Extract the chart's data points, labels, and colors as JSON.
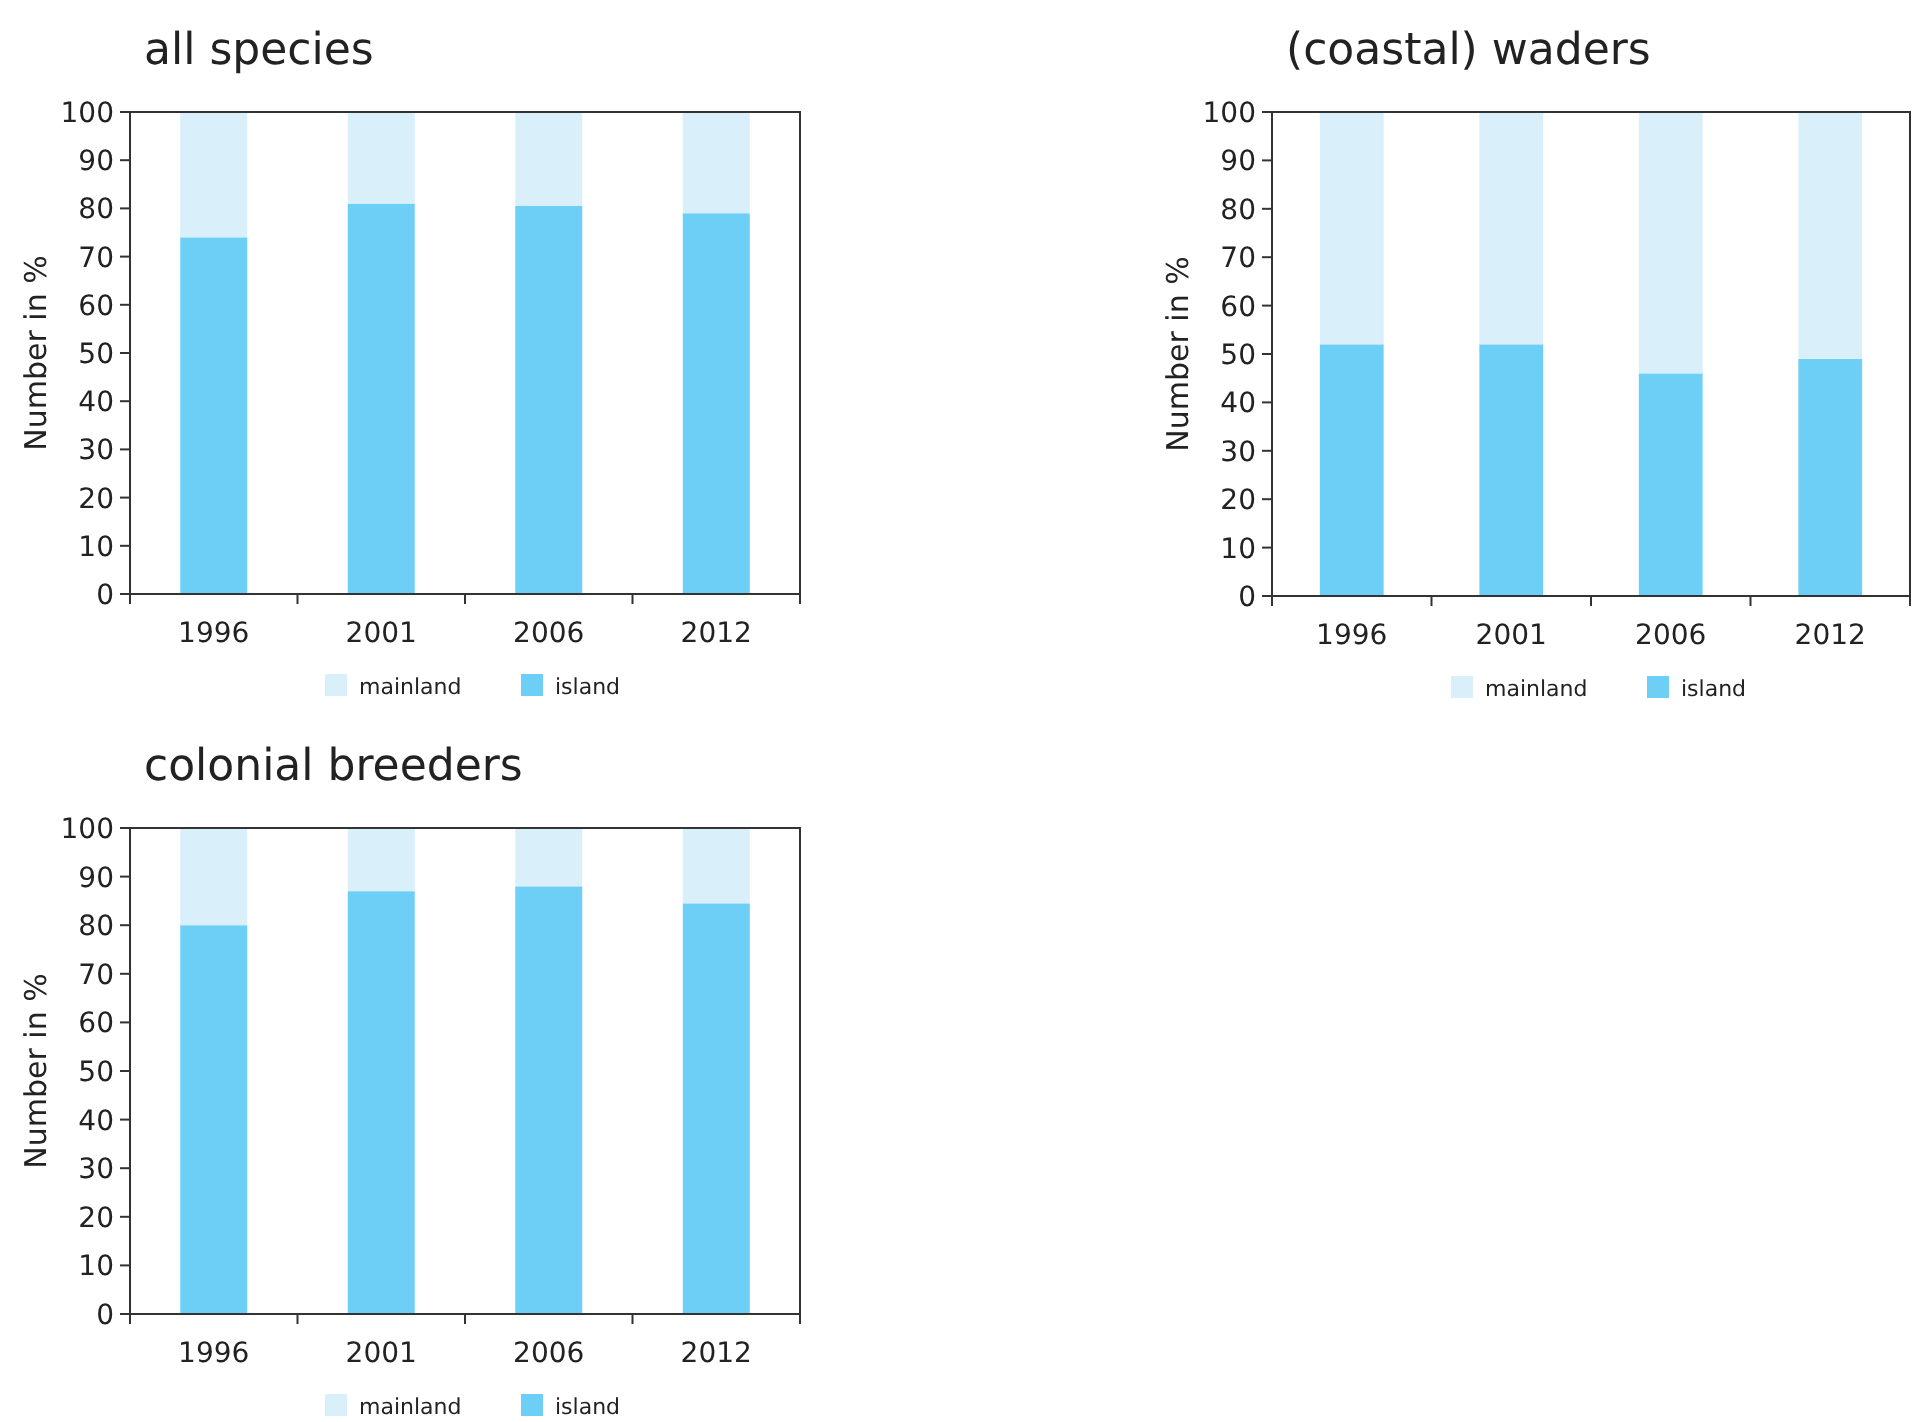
{
  "chart_data": [
    {
      "type": "bar",
      "title": "all species",
      "ylabel": "Number in %",
      "categories": [
        "1996",
        "2001",
        "2006",
        "2012"
      ],
      "stacked": true,
      "ylim": [
        0,
        100
      ],
      "yticks": [
        0,
        10,
        20,
        30,
        40,
        50,
        60,
        70,
        80,
        90,
        100
      ],
      "legend": "bottom",
      "grid": false,
      "series": [
        {
          "name": "island",
          "color": "#6dcff6",
          "values": [
            74,
            81,
            80.5,
            79
          ]
        },
        {
          "name": "mainland",
          "color": "#d9f0fa",
          "values": [
            26,
            19,
            19.5,
            21
          ]
        }
      ]
    },
    {
      "type": "bar",
      "title": "(coastal) waders",
      "ylabel": "Number in %",
      "categories": [
        "1996",
        "2001",
        "2006",
        "2012"
      ],
      "stacked": true,
      "ylim": [
        0,
        100
      ],
      "yticks": [
        0,
        10,
        20,
        30,
        40,
        50,
        60,
        70,
        80,
        90,
        100
      ],
      "legend": "bottom",
      "grid": false,
      "series": [
        {
          "name": "island",
          "color": "#6dcff6",
          "values": [
            52,
            52,
            46,
            49
          ]
        },
        {
          "name": "mainland",
          "color": "#d9f0fa",
          "values": [
            48,
            48,
            54,
            51
          ]
        }
      ]
    },
    {
      "type": "bar",
      "title": "colonial breeders",
      "ylabel": "Number in %",
      "categories": [
        "1996",
        "2001",
        "2006",
        "2012"
      ],
      "stacked": true,
      "ylim": [
        0,
        100
      ],
      "yticks": [
        0,
        10,
        20,
        30,
        40,
        50,
        60,
        70,
        80,
        90,
        100
      ],
      "legend": "bottom",
      "grid": false,
      "series": [
        {
          "name": "island",
          "color": "#6dcff6",
          "values": [
            80,
            87,
            88,
            84.5
          ]
        },
        {
          "name": "mainland",
          "color": "#d9f0fa",
          "values": [
            20,
            13,
            12,
            15.5
          ]
        }
      ]
    }
  ]
}
